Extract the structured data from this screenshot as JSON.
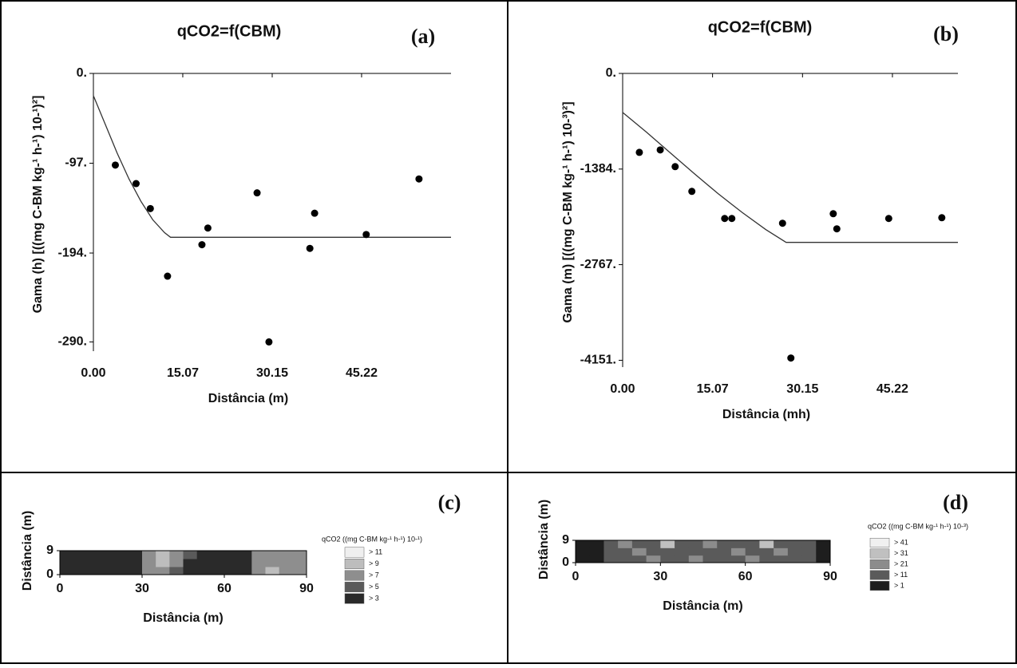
{
  "chart_data": [
    {
      "type": "scatter",
      "title": "qCO2=f(CBM)",
      "panel_label": "(a)",
      "x_label": "Distância (m)",
      "y_label": "Gama (h) [((mg C-BM kg-¹ h-¹) 10-¹)²]",
      "xlim": [
        0,
        60.3
      ],
      "ylim": [
        -300,
        0
      ],
      "xticks": [
        {
          "value": 0,
          "label": "0.00"
        },
        15.07,
        30.15,
        45.22
      ],
      "yticks": [
        {
          "value": 0,
          "label": "0."
        },
        {
          "value": -97,
          "label": "-97."
        },
        {
          "value": -194,
          "label": "-194."
        },
        {
          "value": -290,
          "label": "-290."
        }
      ],
      "points": {
        "color": "#000000",
        "x": [
          3.7,
          7.2,
          9.6,
          12.5,
          18.3,
          19.3,
          27.6,
          29.6,
          36.5,
          37.3,
          46.0,
          54.9
        ],
        "y": [
          -99,
          -119,
          -146,
          -219,
          -185,
          -167,
          -129,
          -290,
          -189,
          -151,
          -174,
          -114
        ]
      },
      "model": {
        "color": "#333333",
        "x": [
          0,
          2,
          4,
          6,
          8,
          10,
          12,
          13,
          60.3
        ],
        "y": [
          -24,
          -55,
          -86,
          -114,
          -138,
          -158,
          -172,
          -177,
          -177
        ]
      }
    },
    {
      "type": "scatter",
      "title": "qCO2=f(CBM)",
      "panel_label": "(b)",
      "x_label": "Distância (mh)",
      "y_label": "Gama (m) [((mg C-BM kg-¹ h-¹) 10-³)²]",
      "xlim": [
        0,
        56.2
      ],
      "ylim": [
        -4250,
        0
      ],
      "xticks": [
        {
          "value": 0,
          "label": "0.00"
        },
        15.07,
        30.15,
        45.22
      ],
      "yticks": [
        {
          "value": 0,
          "label": "0."
        },
        {
          "value": -1384,
          "label": "-1384."
        },
        {
          "value": -2767,
          "label": "-2767."
        },
        {
          "value": -4151,
          "label": "-4151."
        }
      ],
      "points": {
        "color": "#000000",
        "x": [
          2.8,
          6.3,
          8.8,
          11.6,
          17.1,
          18.3,
          26.8,
          28.2,
          35.3,
          35.9,
          44.6,
          53.5
        ],
        "y": [
          -1142,
          -1107,
          -1349,
          -1707,
          -2099,
          -2099,
          -2168,
          -4118,
          -2030,
          -2249,
          -2099,
          -2088
        ]
      },
      "model": {
        "color": "#333333",
        "x": [
          0,
          4,
          8,
          12,
          16,
          20,
          24,
          27.4,
          56.2
        ],
        "y": [
          -565,
          -850,
          -1150,
          -1450,
          -1740,
          -2010,
          -2260,
          -2445,
          -2445
        ]
      }
    },
    {
      "type": "contour",
      "panel_label": "(c)",
      "x_label": "Distância (m)",
      "y_label": "Distância (m)",
      "xlim": [
        0,
        90
      ],
      "ylim": [
        0,
        9
      ],
      "xticks": [
        0,
        30,
        60,
        90
      ],
      "yticks": [
        0,
        9
      ],
      "legend_title": "qCO2 ((mg C-BM kg-¹ h-¹) 10-¹)",
      "levels": [
        {
          "value": 11,
          "label": "> 11",
          "color": "#efefef"
        },
        {
          "value": 9,
          "label": "> 9",
          "color": "#bdbdbd"
        },
        {
          "value": 7,
          "label": "> 7",
          "color": "#8e8e8e"
        },
        {
          "value": 5,
          "label": "> 5",
          "color": "#5a5a5a"
        },
        {
          "value": 3,
          "label": "> 3",
          "color": "#2a2a2a"
        }
      ],
      "z": [
        [
          4,
          4,
          4,
          4,
          4,
          4,
          8,
          8,
          6,
          4,
          4,
          4,
          4,
          4,
          8,
          9,
          8,
          8
        ],
        [
          4,
          4,
          4,
          4,
          4,
          4,
          8,
          9,
          8,
          4,
          4,
          4,
          4,
          4,
          8,
          8,
          8,
          8
        ],
        [
          4,
          4,
          4,
          4,
          4,
          4,
          8,
          10,
          8,
          6,
          4,
          4,
          4,
          4,
          8,
          8,
          8,
          8
        ]
      ]
    },
    {
      "type": "contour",
      "panel_label": "(d)",
      "x_label": "Distância (m)",
      "y_label": "Distância (m)",
      "xlim": [
        0,
        90
      ],
      "ylim": [
        0,
        9
      ],
      "xticks": [
        0,
        30,
        60,
        90
      ],
      "yticks": [
        0,
        9
      ],
      "legend_title": "qCO2 ((mg C-BM kg-¹ h-¹) 10-³)",
      "levels": [
        {
          "value": 41,
          "label": "> 41",
          "color": "#f0f0f0"
        },
        {
          "value": 31,
          "label": "> 31",
          "color": "#c0c0c0"
        },
        {
          "value": 21,
          "label": "> 21",
          "color": "#8c8c8c"
        },
        {
          "value": 11,
          "label": "> 11",
          "color": "#5a5a5a"
        },
        {
          "value": 1,
          "label": "> 1",
          "color": "#1e1e1e"
        }
      ],
      "z": [
        [
          5,
          5,
          15,
          15,
          15,
          25,
          15,
          15,
          25,
          15,
          15,
          15,
          25,
          15,
          15,
          15,
          15,
          5
        ],
        [
          5,
          5,
          15,
          15,
          25,
          15,
          15,
          15,
          15,
          15,
          15,
          25,
          15,
          15,
          25,
          15,
          15,
          5
        ],
        [
          5,
          5,
          15,
          25,
          15,
          15,
          35,
          15,
          15,
          25,
          15,
          15,
          15,
          35,
          15,
          15,
          15,
          5
        ]
      ]
    }
  ]
}
